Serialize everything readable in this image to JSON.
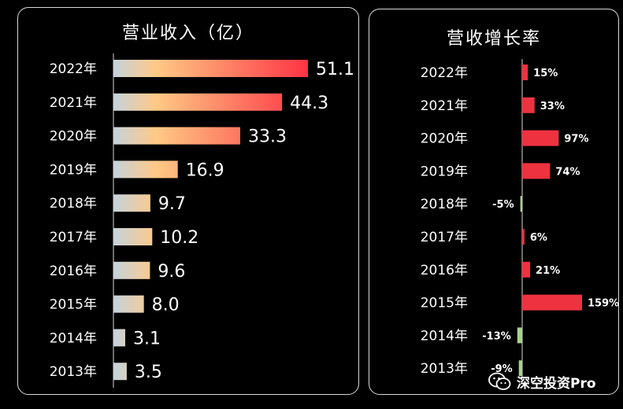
{
  "charts": {
    "revenue": {
      "title": "营业收入（亿）"
    },
    "growth": {
      "title": "营收增长率"
    }
  },
  "chart_data": [
    {
      "type": "bar",
      "orientation": "horizontal",
      "title": "营业收入（亿）",
      "categories": [
        "2022年",
        "2021年",
        "2020年",
        "2019年",
        "2018年",
        "2017年",
        "2016年",
        "2015年",
        "2014年",
        "2013年"
      ],
      "values": [
        51.1,
        44.3,
        33.3,
        16.9,
        9.7,
        10.2,
        9.6,
        8.0,
        3.1,
        3.5
      ],
      "value_labels": [
        "51.1",
        "44.3",
        "33.3",
        "16.9",
        "9.7",
        "10.2",
        "9.6",
        "8.0",
        "3.1",
        "3.5"
      ],
      "xlim": [
        0,
        51.1
      ],
      "colors": {
        "gradient_start": "#c5d3dc",
        "gradient_mid": "#ffc985",
        "gradient_end": "#ff3344"
      }
    },
    {
      "type": "bar",
      "orientation": "horizontal",
      "title": "营收增长率",
      "categories": [
        "2022年",
        "2021年",
        "2020年",
        "2019年",
        "2018年",
        "2017年",
        "2016年",
        "2015年",
        "2014年",
        "2013年"
      ],
      "values": [
        15,
        33,
        97,
        74,
        -5,
        6,
        21,
        159,
        -13,
        -9
      ],
      "value_labels": [
        "15%",
        "33%",
        "97%",
        "74%",
        "-5%",
        "6%",
        "21%",
        "159%",
        "-13%",
        "-9%"
      ],
      "unit": "%",
      "colors": {
        "positive": "#ee3240",
        "negative": "#a9d18e"
      }
    }
  ],
  "watermark": {
    "icon": "wechat-icon",
    "text": "深空投资Pro"
  }
}
